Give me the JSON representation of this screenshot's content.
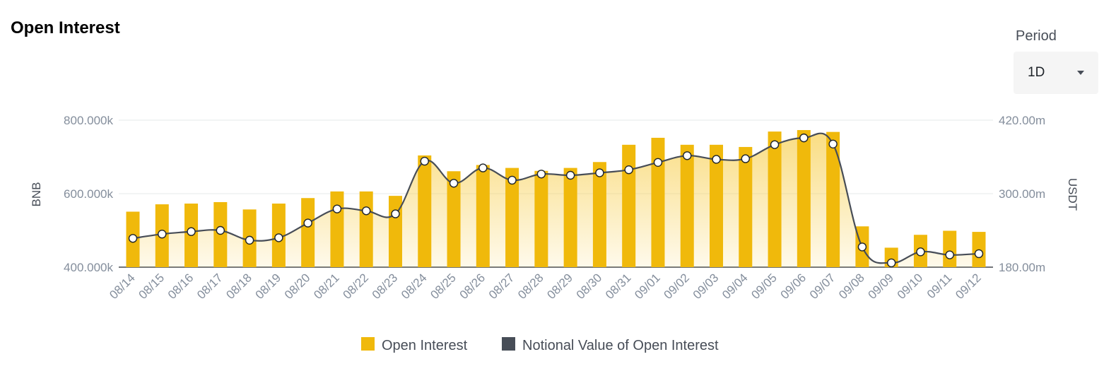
{
  "title": "Open Interest",
  "period": {
    "label": "Period",
    "value": "1D",
    "caret_icon": "chevron-down-icon"
  },
  "colors": {
    "bar": "#f0b90b",
    "line": "#474d57",
    "area_top": "#f8d25a",
    "grid": "#e6e8ea",
    "axis_text": "#848e9c"
  },
  "chart_data": {
    "type": "bar",
    "categories": [
      "08/14",
      "08/15",
      "08/16",
      "08/17",
      "08/18",
      "08/19",
      "08/20",
      "08/21",
      "08/22",
      "08/23",
      "08/24",
      "08/25",
      "08/26",
      "08/27",
      "08/28",
      "08/29",
      "08/30",
      "08/31",
      "09/01",
      "09/02",
      "09/03",
      "09/04",
      "09/05",
      "09/06",
      "09/07",
      "09/08",
      "09/09",
      "09/10",
      "09/11",
      "09/12"
    ],
    "series": [
      {
        "name": "Open Interest",
        "type": "bar",
        "axis": "left",
        "values": [
          551,
          571,
          573,
          577,
          557,
          573,
          588,
          606,
          606,
          594,
          704,
          661,
          678,
          670,
          662,
          670,
          686,
          733,
          752,
          733,
          733,
          727,
          769,
          773,
          768,
          511,
          453,
          488,
          499,
          496
        ]
      },
      {
        "name": "Notional Value of Open Interest",
        "type": "line",
        "axis": "right",
        "values": [
          227,
          234,
          238,
          240,
          224,
          228,
          252,
          275,
          272,
          267,
          353,
          317,
          342,
          322,
          332,
          330,
          334,
          339,
          351,
          362,
          356,
          357,
          380,
          391,
          381,
          213,
          187,
          205,
          200,
          202
        ]
      }
    ],
    "y_left": {
      "label": "BNB",
      "ticks": [
        "400.000k",
        "600.000k",
        "800.000k"
      ],
      "tick_values": [
        400,
        600,
        800
      ],
      "range": [
        400,
        800
      ]
    },
    "y_right": {
      "label": "USDT",
      "ticks": [
        "180.00m",
        "300.00m",
        "420.00m"
      ],
      "tick_values": [
        180,
        300,
        420
      ],
      "range": [
        180,
        420
      ]
    },
    "grid": true,
    "legend_position": "bottom-center"
  }
}
